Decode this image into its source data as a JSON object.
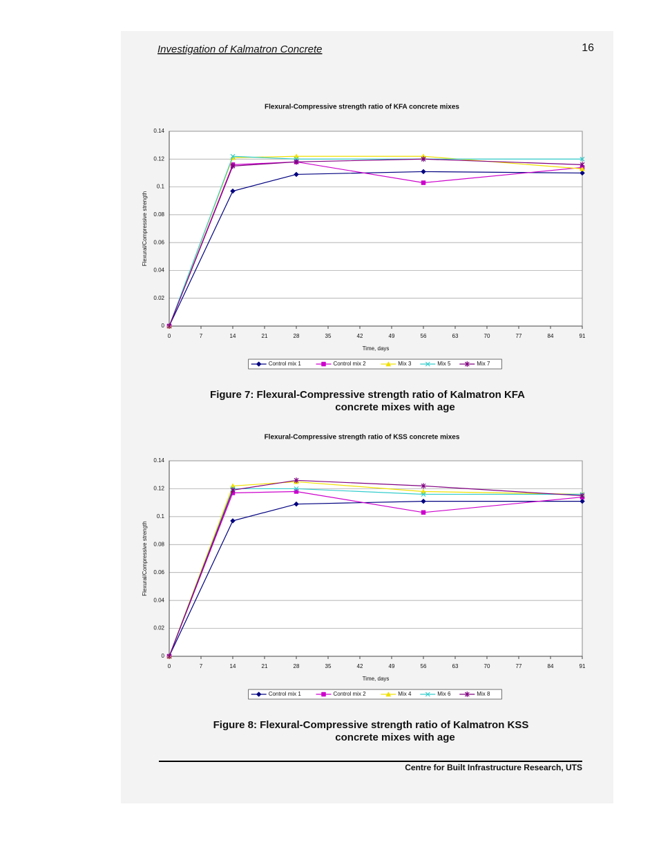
{
  "header": {
    "title": "Investigation of Kalmatron Concrete",
    "page": "16"
  },
  "chart_data": [
    {
      "type": "line",
      "title": "Flexural-Compressive strength ratio of KFA concrete mixes",
      "x_label": "Time, days",
      "y_label": "Flexural/Compressive strength",
      "x": [
        0,
        14,
        28,
        56,
        91
      ],
      "xlim": [
        0,
        91
      ],
      "xticks": [
        0,
        7,
        14,
        21,
        28,
        35,
        42,
        49,
        56,
        63,
        70,
        77,
        84,
        91
      ],
      "ylim": [
        0,
        0.14
      ],
      "yticks": [
        0,
        0.02,
        0.04,
        0.06,
        0.08,
        0.1,
        0.12,
        0.14
      ],
      "grid": true,
      "legend": "bottom",
      "series": [
        {
          "name": "Control mix 1",
          "color": "#000080",
          "marker": "diamond",
          "values": [
            0,
            0.097,
            0.109,
            0.111,
            0.11
          ]
        },
        {
          "name": "Control mix 2",
          "color": "#cc00cc",
          "marker": "square",
          "values": [
            0,
            0.116,
            0.118,
            0.103,
            0.114
          ]
        },
        {
          "name": "Mix 3",
          "color": "#f0e000",
          "marker": "triangle",
          "values": [
            0,
            0.121,
            0.122,
            0.122,
            0.113
          ]
        },
        {
          "name": "Mix 5",
          "color": "#33cccc",
          "marker": "x",
          "values": [
            0,
            0.122,
            0.12,
            0.12,
            0.12
          ]
        },
        {
          "name": "Mix 7",
          "color": "#800080",
          "marker": "star",
          "values": [
            0,
            0.115,
            0.118,
            0.12,
            0.116
          ]
        }
      ]
    },
    {
      "type": "line",
      "title": "Flexural-Compressive strength ratio of KSS concrete mixes",
      "x_label": "Time, days",
      "y_label": "Flexural/Compressive strength",
      "x": [
        0,
        14,
        28,
        56,
        91
      ],
      "xlim": [
        0,
        91
      ],
      "xticks": [
        0,
        7,
        14,
        21,
        28,
        35,
        42,
        49,
        56,
        63,
        70,
        77,
        84,
        91
      ],
      "ylim": [
        0,
        0.14
      ],
      "yticks": [
        0,
        0.02,
        0.04,
        0.06,
        0.08,
        0.1,
        0.12,
        0.14
      ],
      "grid": true,
      "legend": "bottom",
      "series": [
        {
          "name": "Control mix 1",
          "color": "#000080",
          "marker": "diamond",
          "values": [
            0,
            0.097,
            0.109,
            0.111,
            0.111
          ]
        },
        {
          "name": "Control mix 2",
          "color": "#cc00cc",
          "marker": "square",
          "values": [
            0,
            0.117,
            0.118,
            0.103,
            0.114
          ]
        },
        {
          "name": "Mix 4",
          "color": "#f0e000",
          "marker": "triangle",
          "values": [
            0,
            0.122,
            0.125,
            0.118,
            0.116
          ]
        },
        {
          "name": "Mix 6",
          "color": "#33cccc",
          "marker": "x",
          "values": [
            0,
            0.12,
            0.12,
            0.116,
            0.116
          ]
        },
        {
          "name": "Mix 8",
          "color": "#800080",
          "marker": "star",
          "values": [
            0,
            0.119,
            0.126,
            0.122,
            0.115
          ]
        }
      ]
    }
  ],
  "captions": [
    [
      "Figure 7: Flexural-Compressive strength ratio of Kalmatron KFA",
      "concrete mixes with age"
    ],
    [
      "Figure 8: Flexural-Compressive strength ratio of Kalmatron KSS",
      "concrete mixes with age"
    ]
  ],
  "footer": "Centre for Built Infrastructure Research, UTS"
}
